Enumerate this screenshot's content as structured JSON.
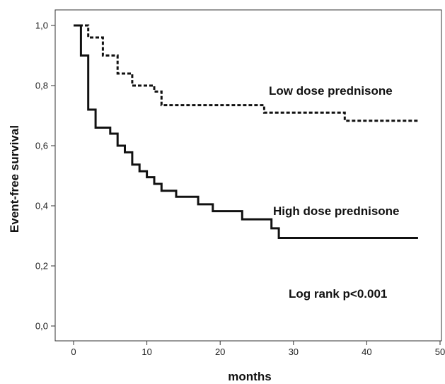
{
  "chart_data": {
    "type": "line",
    "xlabel": "months",
    "ylabel": "Event-free survival",
    "xlim": [
      0,
      50
    ],
    "ylim": [
      0,
      1
    ],
    "x_ticks": [
      "0",
      "10",
      "20",
      "30",
      "40",
      "50"
    ],
    "y_ticks": [
      "0,0",
      "0,2",
      "0,4",
      "0,6",
      "0,8",
      "1,0"
    ],
    "x_tick_values": [
      0,
      10,
      20,
      30,
      40,
      50
    ],
    "y_tick_values": [
      0,
      0.2,
      0.4,
      0.6,
      0.8,
      1.0
    ],
    "grid": false,
    "series": [
      {
        "name": "Low dose prednisone",
        "style": "dashed",
        "color": "#111111",
        "points": [
          [
            0,
            1.0
          ],
          [
            2,
            1.0
          ],
          [
            2,
            0.96
          ],
          [
            4,
            0.96
          ],
          [
            4,
            0.9
          ],
          [
            6,
            0.9
          ],
          [
            6,
            0.84
          ],
          [
            8,
            0.84
          ],
          [
            8,
            0.8
          ],
          [
            11,
            0.8
          ],
          [
            11,
            0.78
          ],
          [
            12,
            0.78
          ],
          [
            12,
            0.735
          ],
          [
            26,
            0.735
          ],
          [
            26,
            0.71
          ],
          [
            37,
            0.71
          ],
          [
            37,
            0.683
          ],
          [
            47,
            0.683
          ]
        ]
      },
      {
        "name": "High dose prednisone",
        "style": "solid",
        "color": "#111111",
        "points": [
          [
            0,
            1.0
          ],
          [
            1,
            1.0
          ],
          [
            1,
            0.9
          ],
          [
            2,
            0.9
          ],
          [
            2,
            0.72
          ],
          [
            3,
            0.72
          ],
          [
            3,
            0.66
          ],
          [
            5,
            0.66
          ],
          [
            5,
            0.64
          ],
          [
            6,
            0.64
          ],
          [
            6,
            0.6
          ],
          [
            7,
            0.6
          ],
          [
            7,
            0.578
          ],
          [
            8,
            0.578
          ],
          [
            8,
            0.537
          ],
          [
            9,
            0.537
          ],
          [
            9,
            0.515
          ],
          [
            10,
            0.515
          ],
          [
            10,
            0.495
          ],
          [
            11,
            0.495
          ],
          [
            11,
            0.473
          ],
          [
            12,
            0.473
          ],
          [
            12,
            0.45
          ],
          [
            14,
            0.45
          ],
          [
            14,
            0.43
          ],
          [
            17,
            0.43
          ],
          [
            17,
            0.405
          ],
          [
            19,
            0.405
          ],
          [
            19,
            0.382
          ],
          [
            23,
            0.382
          ],
          [
            23,
            0.355
          ],
          [
            27,
            0.355
          ],
          [
            27,
            0.325
          ],
          [
            28,
            0.325
          ],
          [
            28,
            0.293
          ],
          [
            47,
            0.293
          ]
        ]
      }
    ],
    "annotations": [
      "Low dose prednisone",
      "High dose prednisone",
      "Log rank p<0.001"
    ]
  }
}
